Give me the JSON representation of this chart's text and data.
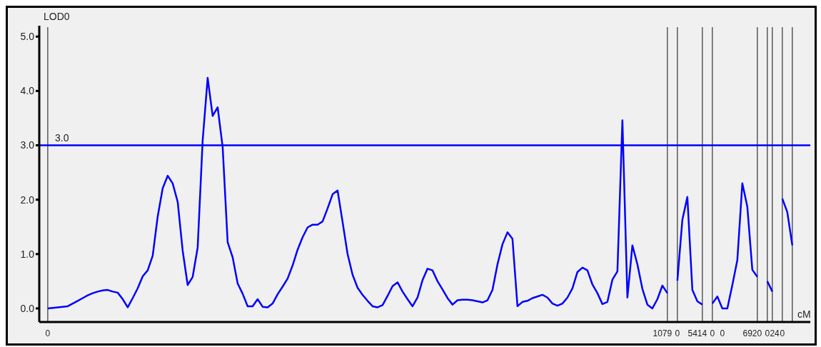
{
  "chart_data": {
    "type": "line",
    "ylabel": "LOD0",
    "xlabel": "cM",
    "color": "#0000ff",
    "line_style": "solid",
    "categories": [
      "0",
      null,
      null,
      null,
      null,
      null,
      null,
      null,
      null,
      null,
      null,
      null,
      null,
      null,
      null,
      null,
      null,
      null,
      null,
      null,
      null,
      null,
      null,
      null,
      null,
      null,
      null,
      null,
      null,
      null,
      null,
      null,
      null,
      null,
      null,
      null,
      null,
      null,
      null,
      null,
      null,
      null,
      null,
      null,
      null,
      null,
      null,
      null,
      null,
      null,
      null,
      null,
      null,
      null,
      null,
      null,
      null,
      null,
      null,
      null,
      null,
      null,
      null,
      null,
      null,
      null,
      null,
      null,
      null,
      null,
      null,
      null,
      null,
      null,
      null,
      null,
      null,
      null,
      null,
      null,
      null,
      null,
      null,
      null,
      null,
      null,
      null,
      null,
      null,
      null,
      null,
      null,
      null,
      null,
      null,
      null,
      null,
      null,
      null,
      null,
      null,
      null,
      null,
      null,
      null,
      null,
      null,
      null,
      null,
      null,
      null,
      null,
      null,
      null,
      null,
      null,
      null,
      null,
      null,
      null,
      null,
      null,
      null,
      "1079",
      null,
      null,
      "0",
      null,
      null,
      null,
      "5414",
      null,
      null,
      "0",
      null,
      "0",
      null,
      null,
      null,
      null,
      null,
      "6920",
      null,
      null,
      "0",
      null,
      "24",
      "0",
      null,
      null
    ],
    "values": [
      0,
      0.01,
      0.02,
      0.03,
      0.04,
      0.09,
      0.14,
      0.19,
      0.24,
      0.28,
      0.31,
      0.33,
      0.34,
      0.31,
      0.29,
      0.17,
      0.02,
      0.19,
      0.37,
      0.59,
      0.7,
      0.97,
      1.69,
      2.21,
      2.44,
      2.3,
      1.96,
      1.06,
      0.43,
      0.58,
      1.12,
      3.09,
      4.24,
      3.54,
      3.7,
      2.97,
      1.22,
      0.94,
      0.46,
      0.27,
      0.04,
      0.04,
      0.17,
      0.03,
      0.02,
      0.09,
      0.26,
      0.4,
      0.55,
      0.79,
      1.08,
      1.31,
      1.49,
      1.54,
      1.54,
      1.6,
      1.84,
      2.1,
      2.17,
      1.59,
      1.0,
      0.62,
      0.38,
      0.25,
      0.14,
      0.04,
      0.02,
      0.06,
      0.23,
      0.41,
      0.48,
      0.31,
      0.17,
      0.04,
      0.2,
      0.52,
      0.73,
      0.7,
      0.5,
      0.35,
      0.19,
      0.07,
      0.15,
      0.16,
      0.16,
      0.15,
      0.13,
      0.11,
      0.15,
      0.34,
      0.81,
      1.18,
      1.4,
      1.28,
      0.04,
      0.12,
      0.14,
      0.19,
      0.22,
      0.25,
      0.2,
      0.09,
      0.05,
      0.09,
      0.2,
      0.37,
      0.67,
      0.75,
      0.7,
      0.44,
      0.28,
      0.08,
      0.12,
      0.53,
      0.68,
      3.46,
      0.2,
      1.16,
      0.81,
      0.36,
      0.07,
      0,
      0.17,
      0.42,
      0.28,
      null,
      0.51,
      1.63,
      2.05,
      0.34,
      0.13,
      0.07,
      null,
      0.09,
      0.22,
      0,
      0,
      0.43,
      0.89,
      2.3,
      1.87,
      0.71,
      0.58,
      null,
      0.5,
      0.31,
      null,
      2.02,
      1.77,
      1.16
    ],
    "ylim": [
      -0.25,
      5.2
    ],
    "yticks": [
      {
        "value": 0,
        "label": "0.0"
      },
      {
        "value": 1,
        "label": "1.0"
      },
      {
        "value": 2,
        "label": "2.0"
      },
      {
        "value": 3,
        "label": "3.0"
      },
      {
        "value": 4,
        "label": "4.0"
      },
      {
        "value": 5,
        "label": "5.0"
      }
    ],
    "ref_lines": [
      {
        "axis": "y",
        "value": 3,
        "label": "3.0",
        "color": "#0000ff"
      }
    ]
  }
}
